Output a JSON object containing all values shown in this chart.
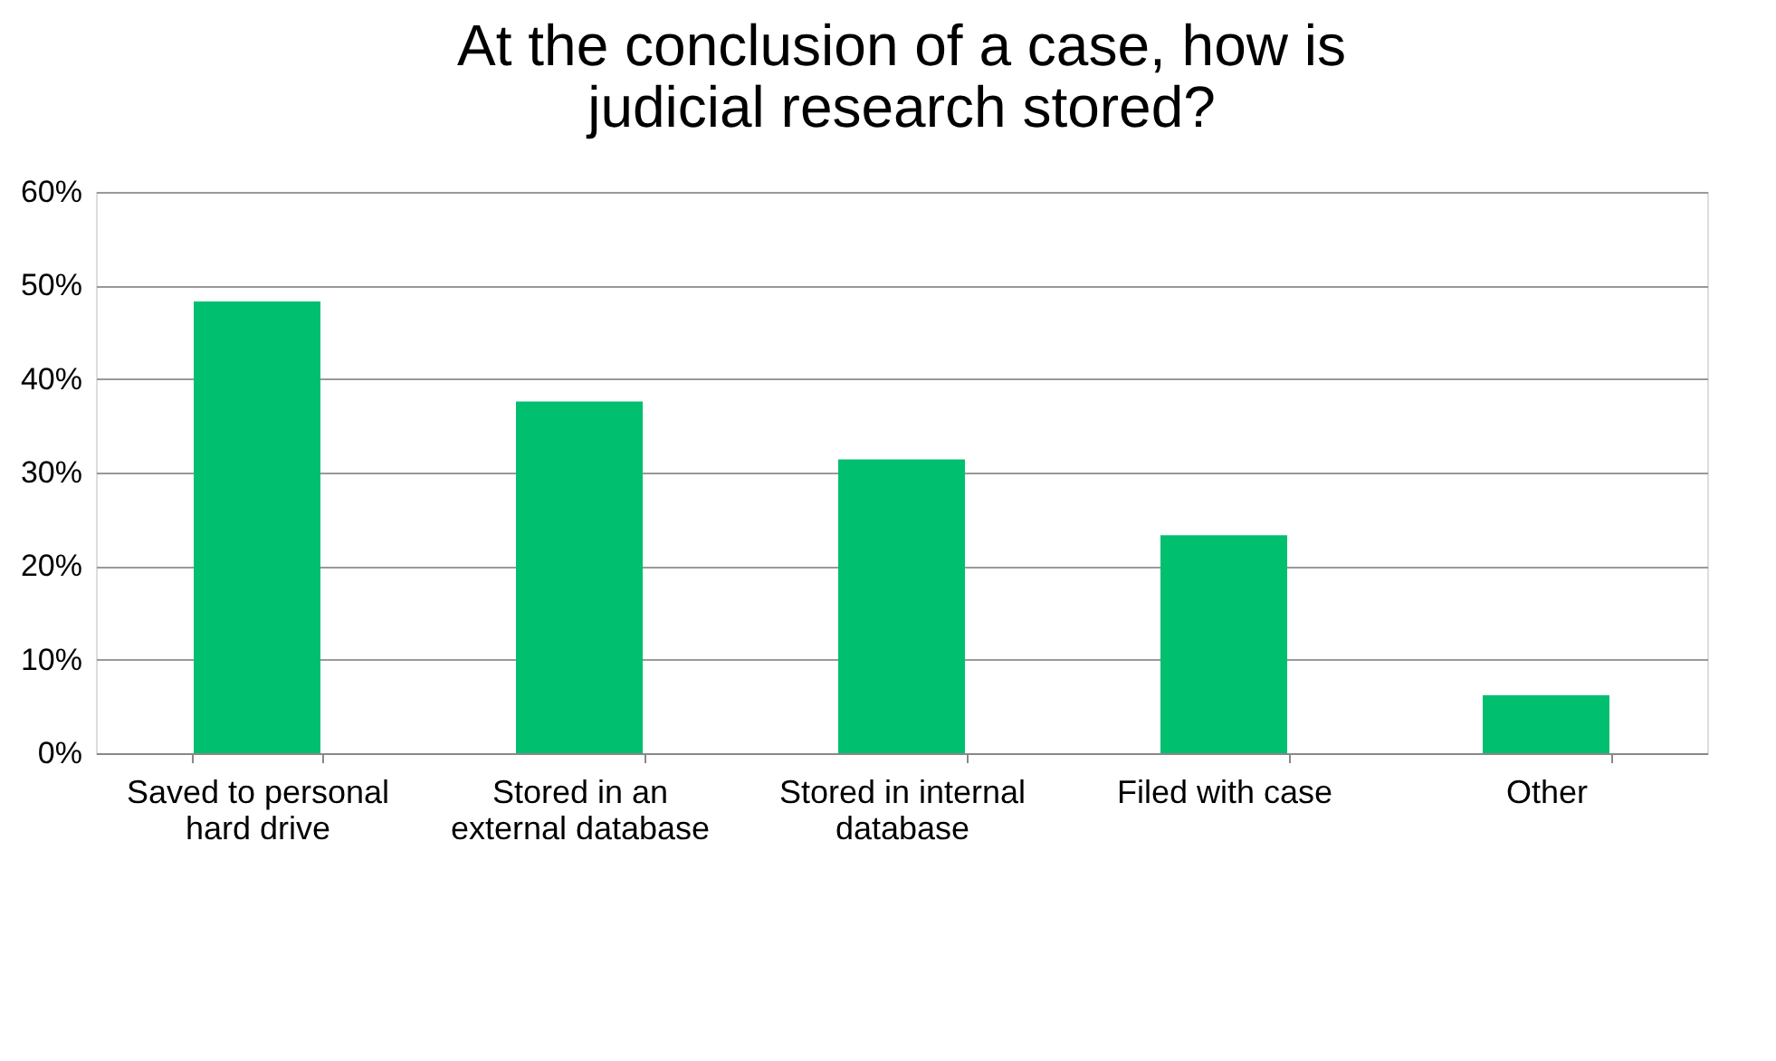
{
  "chart_data": {
    "type": "bar",
    "title": "At the conclusion of a case, how is judicial research stored?",
    "categories": [
      "Saved to personal hard drive",
      "Stored in an external database",
      "Stored in internal database",
      "Filed with case",
      "Other"
    ],
    "values": [
      48.3,
      37.6,
      31.4,
      23.3,
      6.2
    ],
    "color": "#00bf6f",
    "ylim": [
      0,
      60
    ],
    "yticks": [
      {
        "value": 0,
        "label": "0%"
      },
      {
        "value": 10,
        "label": "10%"
      },
      {
        "value": 20,
        "label": "20%"
      },
      {
        "value": 30,
        "label": "30%"
      },
      {
        "value": 40,
        "label": "40%"
      },
      {
        "value": 50,
        "label": "50%"
      },
      {
        "value": 60,
        "label": "60%"
      }
    ],
    "grid": "y"
  }
}
